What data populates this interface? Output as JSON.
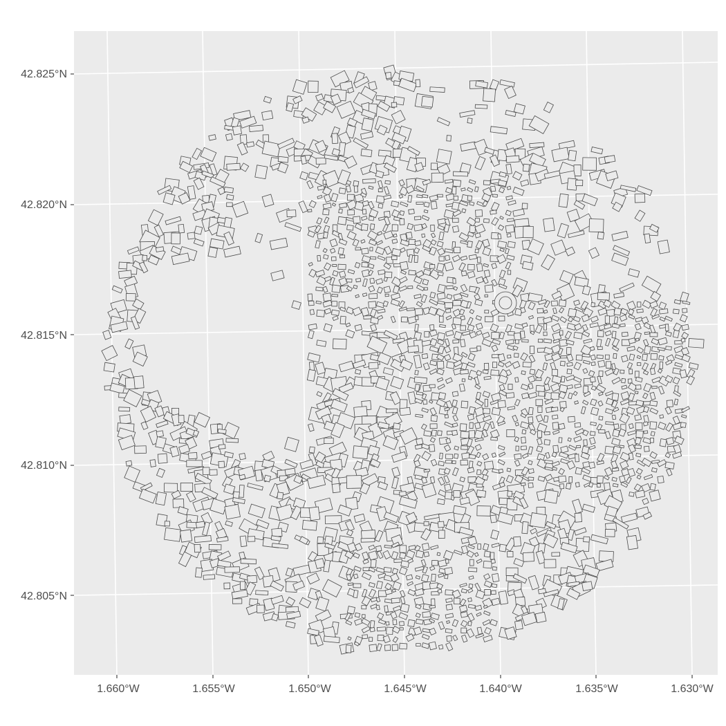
{
  "map": {
    "panel_background": "#ebebeb",
    "grid_color": "#ffffff",
    "building_fill": "#ebebeb",
    "building_stroke": "#4a4a4a",
    "y_axis": {
      "ticks": [
        "42.825°N",
        "42.820°N",
        "42.815°N",
        "42.810°N",
        "42.805°N"
      ]
    },
    "x_axis": {
      "ticks": [
        "1.660°W",
        "1.655°W",
        "1.650°W",
        "1.645°W",
        "1.640°W",
        "1.635°W",
        "1.630°W"
      ]
    }
  }
}
